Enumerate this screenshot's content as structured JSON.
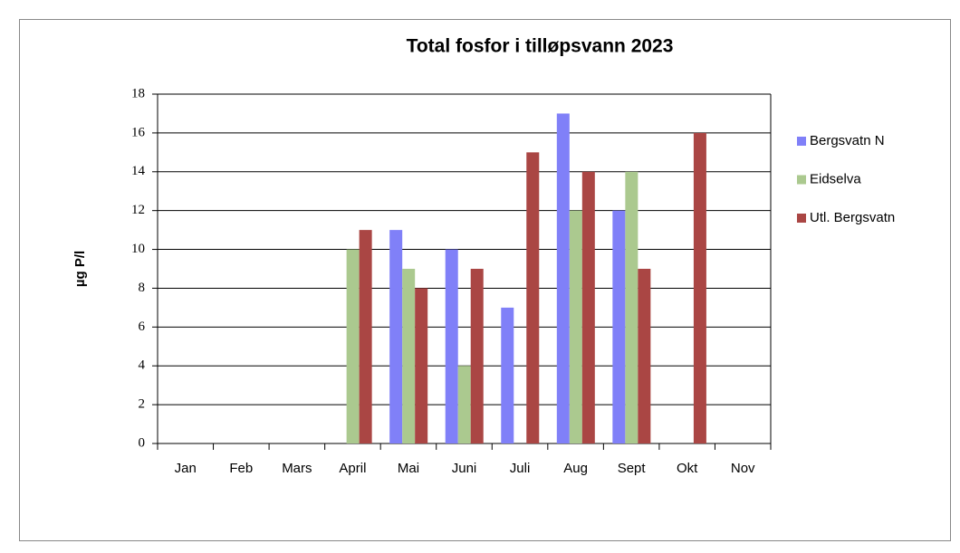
{
  "chart_data": {
    "type": "bar",
    "title": "Total fosfor i tilløpsvann 2023",
    "y_label": "µg P/l",
    "categories": [
      "Jan",
      "Feb",
      "Mars",
      "April",
      "Mai",
      "Juni",
      "Juli",
      "Aug",
      "Sept",
      "Okt",
      "Nov"
    ],
    "series": [
      {
        "name": "Bergsvatn N",
        "color": "#8080f8",
        "values": [
          null,
          null,
          null,
          null,
          11,
          10,
          7,
          17,
          12,
          null,
          null
        ]
      },
      {
        "name": "Eidselva",
        "color": "#abc98f",
        "values": [
          null,
          null,
          null,
          10,
          9,
          4,
          null,
          12,
          14,
          null,
          null
        ]
      },
      {
        "name": "Utl. Bergsvatn",
        "color": "#aa4644",
        "values": [
          null,
          null,
          null,
          11,
          8,
          9,
          15,
          14,
          9,
          16,
          null
        ]
      }
    ],
    "ylim": [
      0,
      18
    ],
    "yticks": [
      0,
      2,
      4,
      6,
      8,
      10,
      12,
      14,
      16,
      18
    ],
    "grid": true,
    "legend": "right"
  }
}
